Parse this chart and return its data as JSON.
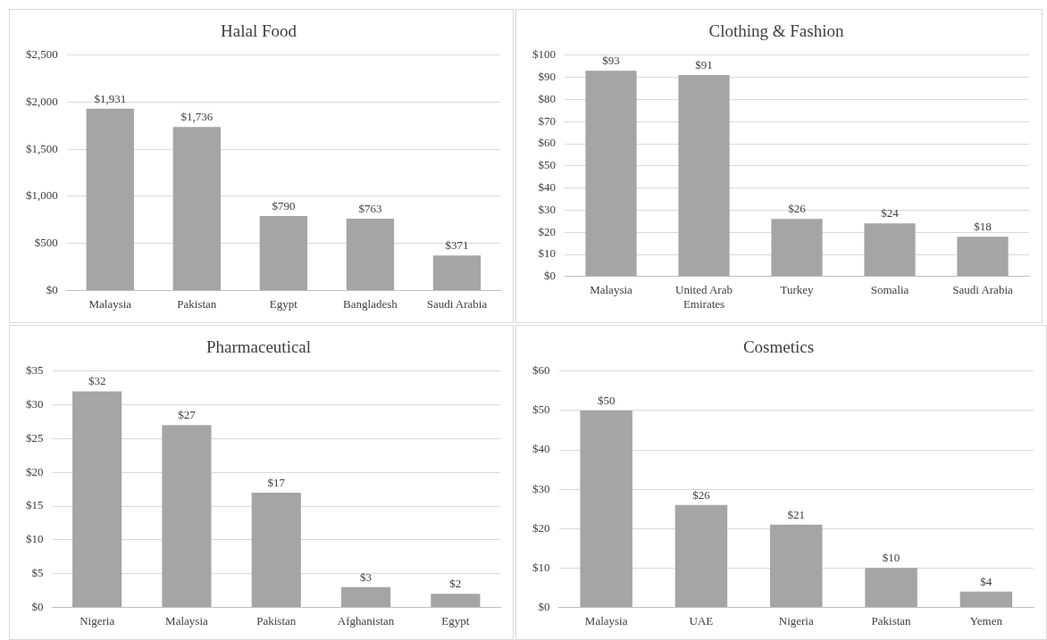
{
  "chart_data": [
    {
      "type": "bar",
      "title": "Halal Food",
      "categories": [
        "Malaysia",
        "Pakistan",
        "Egypt",
        "Bangladesh",
        "Saudi Arabia"
      ],
      "values": [
        1931,
        1736,
        790,
        763,
        371
      ],
      "value_labels": [
        "$1,931",
        "$1,736",
        "$790",
        "$763",
        "$371"
      ],
      "color": "#a5a5a5",
      "ylim": [
        0,
        2500
      ],
      "yticks": [
        {
          "value": 0,
          "label": "$0"
        },
        {
          "value": 500,
          "label": "$500"
        },
        {
          "value": 1000,
          "label": "$1,000"
        },
        {
          "value": 1500,
          "label": "$1,500"
        },
        {
          "value": 2000,
          "label": "$2,000"
        },
        {
          "value": 2500,
          "label": "$2,500"
        }
      ],
      "grid": "y"
    },
    {
      "type": "bar",
      "title": "Clothing & Fashion",
      "categories": [
        "Malaysia",
        "United Arab Emirates",
        "Turkey",
        "Somalia",
        "Saudi Arabia"
      ],
      "values": [
        93,
        91,
        26,
        24,
        18
      ],
      "value_labels": [
        "$93",
        "$91",
        "$26",
        "$24",
        "$18"
      ],
      "color": "#a5a5a5",
      "ylim": [
        0,
        100
      ],
      "yticks": [
        {
          "value": 0,
          "label": "$0"
        },
        {
          "value": 10,
          "label": "$10"
        },
        {
          "value": 20,
          "label": "$20"
        },
        {
          "value": 30,
          "label": "$30"
        },
        {
          "value": 40,
          "label": "$40"
        },
        {
          "value": 50,
          "label": "$50"
        },
        {
          "value": 60,
          "label": "$60"
        },
        {
          "value": 70,
          "label": "$70"
        },
        {
          "value": 80,
          "label": "$80"
        },
        {
          "value": 90,
          "label": "$90"
        },
        {
          "value": 100,
          "label": "$100"
        }
      ],
      "grid": "y"
    },
    {
      "type": "bar",
      "title": "Pharmaceutical",
      "categories": [
        "Nigeria",
        "Malaysia",
        "Pakistan",
        "Afghanistan",
        "Egypt"
      ],
      "values": [
        32,
        27,
        17,
        3,
        2
      ],
      "value_labels": [
        "$32",
        "$27",
        "$17",
        "$3",
        "$2"
      ],
      "color": "#a5a5a5",
      "ylim": [
        0,
        35
      ],
      "yticks": [
        {
          "value": 0,
          "label": "$0"
        },
        {
          "value": 5,
          "label": "$5"
        },
        {
          "value": 10,
          "label": "$10"
        },
        {
          "value": 15,
          "label": "$15"
        },
        {
          "value": 20,
          "label": "$20"
        },
        {
          "value": 25,
          "label": "$25"
        },
        {
          "value": 30,
          "label": "$30"
        },
        {
          "value": 35,
          "label": "$35"
        }
      ],
      "grid": "y"
    },
    {
      "type": "bar",
      "title": "Cosmetics",
      "categories": [
        "Malaysia",
        "UAE",
        "Nigeria",
        "Pakistan",
        "Yemen"
      ],
      "values": [
        50,
        26,
        21,
        10,
        4
      ],
      "value_labels": [
        "$50",
        "$26",
        "$21",
        "$10",
        "$4"
      ],
      "color": "#a5a5a5",
      "ylim": [
        0,
        60
      ],
      "yticks": [
        {
          "value": 0,
          "label": "$0"
        },
        {
          "value": 10,
          "label": "$10"
        },
        {
          "value": 20,
          "label": "$20"
        },
        {
          "value": 30,
          "label": "$30"
        },
        {
          "value": 40,
          "label": "$40"
        },
        {
          "value": 50,
          "label": "$50"
        },
        {
          "value": 60,
          "label": "$60"
        }
      ],
      "grid": "y"
    }
  ]
}
